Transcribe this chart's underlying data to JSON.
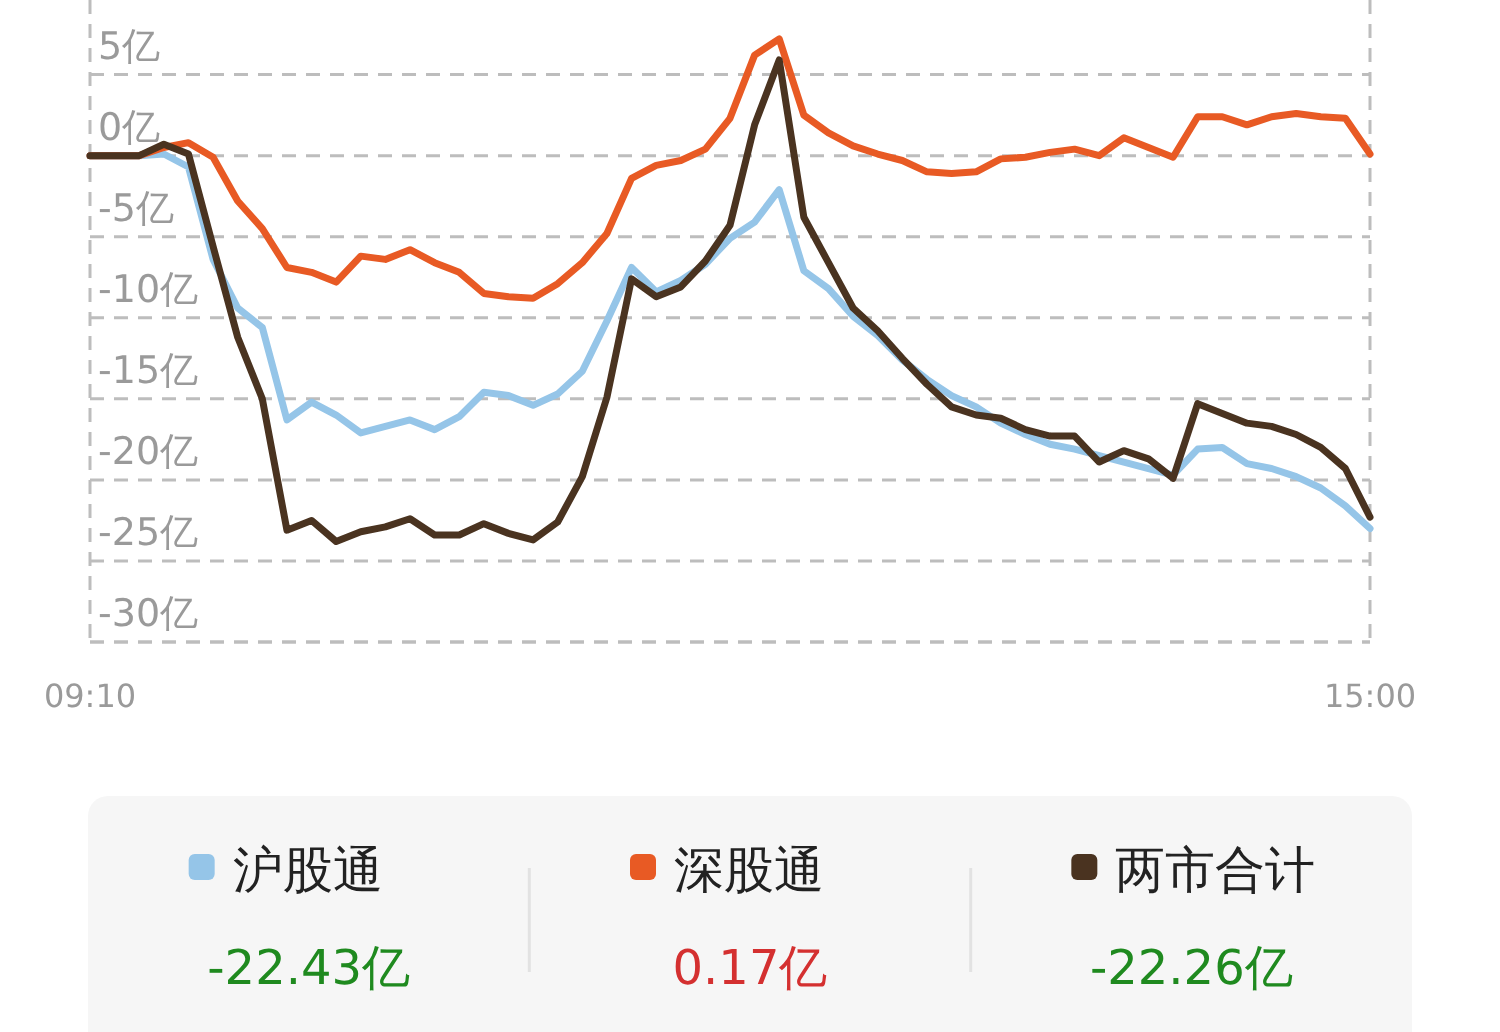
{
  "chart_data": {
    "type": "line",
    "ylim": [
      -30,
      9.6
    ],
    "yticks": [
      {
        "value": 5,
        "label": "5亿"
      },
      {
        "value": 0,
        "label": "0亿"
      },
      {
        "value": -5,
        "label": "-5亿"
      },
      {
        "value": -10,
        "label": "-10亿"
      },
      {
        "value": -15,
        "label": "-15亿"
      },
      {
        "value": -20,
        "label": "-20亿"
      },
      {
        "value": -25,
        "label": "-25亿"
      },
      {
        "value": -30,
        "label": "-30亿"
      }
    ],
    "categories": [
      "09:10",
      null,
      null,
      null,
      null,
      null,
      null,
      null,
      null,
      null,
      null,
      null,
      null,
      null,
      null,
      null,
      null,
      null,
      null,
      null,
      null,
      null,
      null,
      null,
      null,
      null,
      null,
      null,
      null,
      null,
      null,
      null,
      null,
      null,
      null,
      null,
      null,
      null,
      null,
      null,
      null,
      null,
      null,
      null,
      null,
      null,
      null,
      null,
      null,
      null,
      null,
      null,
      "15:00"
    ],
    "grid": "y",
    "legend": "bottom",
    "line_style": "solid",
    "marker": "none",
    "annotations": [
      "-22.43亿",
      "0.17亿",
      "-22.26亿"
    ],
    "series": [
      {
        "name": "沪股通",
        "color": "#95c5e8",
        "values": [
          0,
          0,
          0,
          0.1,
          -0.7,
          -6.4,
          -9.4,
          -10.6,
          -16.3,
          -15.2,
          -16.0,
          -17.1,
          -16.7,
          -16.3,
          -16.9,
          -16.1,
          -14.6,
          -14.8,
          -15.4,
          -14.7,
          -13.3,
          -10.2,
          -6.9,
          -8.4,
          -7.7,
          -6.7,
          -5.1,
          -4.1,
          -2.1,
          -7.1,
          -8.2,
          -9.9,
          -11.1,
          -12.6,
          -13.8,
          -14.8,
          -15.5,
          -16.5,
          -17.2,
          -17.8,
          -18.1,
          -18.5,
          -18.9,
          -19.3,
          -19.7,
          -18.1,
          -18.0,
          -19.0,
          -19.3,
          -19.8,
          -20.5,
          -21.6,
          -23.0
        ]
      },
      {
        "name": "深股通",
        "color": "#e85a24",
        "values": [
          0,
          0,
          0,
          0.5,
          0.8,
          -0.1,
          -2.8,
          -4.5,
          -6.9,
          -7.2,
          -7.8,
          -6.2,
          -6.4,
          -5.8,
          -6.6,
          -7.2,
          -8.5,
          -8.7,
          -8.8,
          -7.9,
          -6.6,
          -4.8,
          -1.4,
          -0.6,
          -0.3,
          0.4,
          2.3,
          6.2,
          7.2,
          2.5,
          1.4,
          0.6,
          0.1,
          -0.3,
          -1.0,
          -1.1,
          -1.0,
          -0.2,
          -0.1,
          0.2,
          0.4,
          0.0,
          1.1,
          0.5,
          -0.1,
          2.4,
          2.4,
          1.9,
          2.4,
          2.6,
          2.4,
          2.3,
          0.1
        ]
      },
      {
        "name": "两市合计",
        "color": "#4a3320",
        "values": [
          0,
          0,
          0,
          0.7,
          0.1,
          -5.6,
          -11.2,
          -15.0,
          -23.1,
          -22.5,
          -23.8,
          -23.2,
          -22.9,
          -22.4,
          -23.4,
          -23.4,
          -22.7,
          -23.3,
          -23.7,
          -22.6,
          -19.8,
          -14.9,
          -7.6,
          -8.7,
          -8.1,
          -6.5,
          -4.3,
          1.9,
          5.9,
          -3.8,
          -6.6,
          -9.4,
          -10.8,
          -12.5,
          -14.1,
          -15.5,
          -16.0,
          -16.2,
          -16.9,
          -17.3,
          -17.3,
          -18.9,
          -18.2,
          -18.7,
          -19.9,
          -15.3,
          -15.9,
          -16.5,
          -16.7,
          -17.2,
          -18.0,
          -19.3,
          -22.3
        ]
      }
    ]
  }
}
